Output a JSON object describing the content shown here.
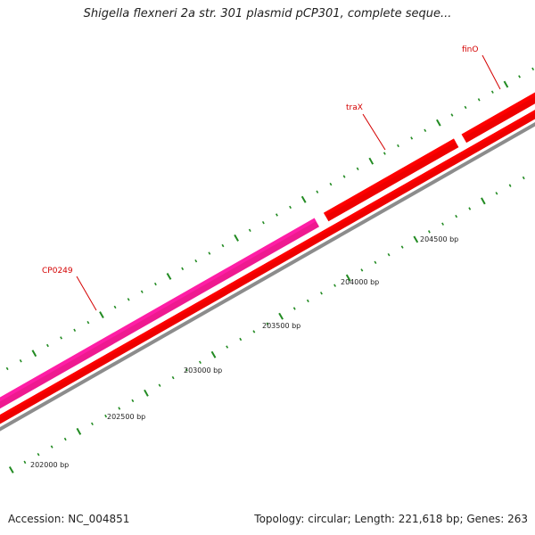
{
  "title": "Shigella flexneri 2a str. 301 plasmid pCP301, complete seque...",
  "footer": {
    "accession": "Accession: NC_004851",
    "stats": "Topology: circular; Length: 221,618 bp; Genes: 263"
  },
  "colors": {
    "gene_forward": "#ee0000",
    "gene_highlight": "#ee1a90",
    "backbone": "#8c8c8c",
    "tick": "#228b22",
    "label": "#d40000"
  },
  "ticks": [
    {
      "label": "202000 bp",
      "bp": 202000
    },
    {
      "label": "202500 bp",
      "bp": 202500
    },
    {
      "label": "203000 bp",
      "bp": 203000
    },
    {
      "label": "203500 bp",
      "bp": 203500
    },
    {
      "label": "204000 bp",
      "bp": 204000
    },
    {
      "label": "204500 bp",
      "bp": 204500
    }
  ],
  "genes": [
    {
      "name": "CP0249",
      "color": "highlight"
    },
    {
      "name": "traX",
      "color": "forward"
    },
    {
      "name": "finO",
      "color": "forward"
    }
  ]
}
